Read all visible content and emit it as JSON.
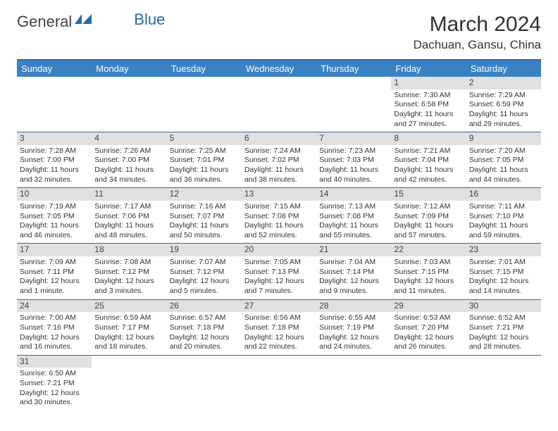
{
  "logo": {
    "part1": "General",
    "part2": "Blue"
  },
  "title": "March 2024",
  "location": "Dachuan, Gansu, China",
  "colors": {
    "header_bg": "#3b82c4",
    "header_text": "#ffffff",
    "border": "#2b6aa8",
    "daynum_bg": "#e0e0e0",
    "text": "#333333"
  },
  "daynames": [
    "Sunday",
    "Monday",
    "Tuesday",
    "Wednesday",
    "Thursday",
    "Friday",
    "Saturday"
  ],
  "weeks": [
    [
      {
        "n": "",
        "l1": "",
        "l2": "",
        "l3": "",
        "l4": ""
      },
      {
        "n": "",
        "l1": "",
        "l2": "",
        "l3": "",
        "l4": ""
      },
      {
        "n": "",
        "l1": "",
        "l2": "",
        "l3": "",
        "l4": ""
      },
      {
        "n": "",
        "l1": "",
        "l2": "",
        "l3": "",
        "l4": ""
      },
      {
        "n": "",
        "l1": "",
        "l2": "",
        "l3": "",
        "l4": ""
      },
      {
        "n": "1",
        "l1": "Sunrise: 7:30 AM",
        "l2": "Sunset: 6:58 PM",
        "l3": "Daylight: 11 hours",
        "l4": "and 27 minutes."
      },
      {
        "n": "2",
        "l1": "Sunrise: 7:29 AM",
        "l2": "Sunset: 6:59 PM",
        "l3": "Daylight: 11 hours",
        "l4": "and 29 minutes."
      }
    ],
    [
      {
        "n": "3",
        "l1": "Sunrise: 7:28 AM",
        "l2": "Sunset: 7:00 PM",
        "l3": "Daylight: 11 hours",
        "l4": "and 32 minutes."
      },
      {
        "n": "4",
        "l1": "Sunrise: 7:26 AM",
        "l2": "Sunset: 7:00 PM",
        "l3": "Daylight: 11 hours",
        "l4": "and 34 minutes."
      },
      {
        "n": "5",
        "l1": "Sunrise: 7:25 AM",
        "l2": "Sunset: 7:01 PM",
        "l3": "Daylight: 11 hours",
        "l4": "and 36 minutes."
      },
      {
        "n": "6",
        "l1": "Sunrise: 7:24 AM",
        "l2": "Sunset: 7:02 PM",
        "l3": "Daylight: 11 hours",
        "l4": "and 38 minutes."
      },
      {
        "n": "7",
        "l1": "Sunrise: 7:23 AM",
        "l2": "Sunset: 7:03 PM",
        "l3": "Daylight: 11 hours",
        "l4": "and 40 minutes."
      },
      {
        "n": "8",
        "l1": "Sunrise: 7:21 AM",
        "l2": "Sunset: 7:04 PM",
        "l3": "Daylight: 11 hours",
        "l4": "and 42 minutes."
      },
      {
        "n": "9",
        "l1": "Sunrise: 7:20 AM",
        "l2": "Sunset: 7:05 PM",
        "l3": "Daylight: 11 hours",
        "l4": "and 44 minutes."
      }
    ],
    [
      {
        "n": "10",
        "l1": "Sunrise: 7:19 AM",
        "l2": "Sunset: 7:05 PM",
        "l3": "Daylight: 11 hours",
        "l4": "and 46 minutes."
      },
      {
        "n": "11",
        "l1": "Sunrise: 7:17 AM",
        "l2": "Sunset: 7:06 PM",
        "l3": "Daylight: 11 hours",
        "l4": "and 48 minutes."
      },
      {
        "n": "12",
        "l1": "Sunrise: 7:16 AM",
        "l2": "Sunset: 7:07 PM",
        "l3": "Daylight: 11 hours",
        "l4": "and 50 minutes."
      },
      {
        "n": "13",
        "l1": "Sunrise: 7:15 AM",
        "l2": "Sunset: 7:08 PM",
        "l3": "Daylight: 11 hours",
        "l4": "and 52 minutes."
      },
      {
        "n": "14",
        "l1": "Sunrise: 7:13 AM",
        "l2": "Sunset: 7:08 PM",
        "l3": "Daylight: 11 hours",
        "l4": "and 55 minutes."
      },
      {
        "n": "15",
        "l1": "Sunrise: 7:12 AM",
        "l2": "Sunset: 7:09 PM",
        "l3": "Daylight: 11 hours",
        "l4": "and 57 minutes."
      },
      {
        "n": "16",
        "l1": "Sunrise: 7:11 AM",
        "l2": "Sunset: 7:10 PM",
        "l3": "Daylight: 11 hours",
        "l4": "and 59 minutes."
      }
    ],
    [
      {
        "n": "17",
        "l1": "Sunrise: 7:09 AM",
        "l2": "Sunset: 7:11 PM",
        "l3": "Daylight: 12 hours",
        "l4": "and 1 minute."
      },
      {
        "n": "18",
        "l1": "Sunrise: 7:08 AM",
        "l2": "Sunset: 7:12 PM",
        "l3": "Daylight: 12 hours",
        "l4": "and 3 minutes."
      },
      {
        "n": "19",
        "l1": "Sunrise: 7:07 AM",
        "l2": "Sunset: 7:12 PM",
        "l3": "Daylight: 12 hours",
        "l4": "and 5 minutes."
      },
      {
        "n": "20",
        "l1": "Sunrise: 7:05 AM",
        "l2": "Sunset: 7:13 PM",
        "l3": "Daylight: 12 hours",
        "l4": "and 7 minutes."
      },
      {
        "n": "21",
        "l1": "Sunrise: 7:04 AM",
        "l2": "Sunset: 7:14 PM",
        "l3": "Daylight: 12 hours",
        "l4": "and 9 minutes."
      },
      {
        "n": "22",
        "l1": "Sunrise: 7:03 AM",
        "l2": "Sunset: 7:15 PM",
        "l3": "Daylight: 12 hours",
        "l4": "and 11 minutes."
      },
      {
        "n": "23",
        "l1": "Sunrise: 7:01 AM",
        "l2": "Sunset: 7:15 PM",
        "l3": "Daylight: 12 hours",
        "l4": "and 14 minutes."
      }
    ],
    [
      {
        "n": "24",
        "l1": "Sunrise: 7:00 AM",
        "l2": "Sunset: 7:16 PM",
        "l3": "Daylight: 12 hours",
        "l4": "and 16 minutes."
      },
      {
        "n": "25",
        "l1": "Sunrise: 6:59 AM",
        "l2": "Sunset: 7:17 PM",
        "l3": "Daylight: 12 hours",
        "l4": "and 18 minutes."
      },
      {
        "n": "26",
        "l1": "Sunrise: 6:57 AM",
        "l2": "Sunset: 7:18 PM",
        "l3": "Daylight: 12 hours",
        "l4": "and 20 minutes."
      },
      {
        "n": "27",
        "l1": "Sunrise: 6:56 AM",
        "l2": "Sunset: 7:18 PM",
        "l3": "Daylight: 12 hours",
        "l4": "and 22 minutes."
      },
      {
        "n": "28",
        "l1": "Sunrise: 6:55 AM",
        "l2": "Sunset: 7:19 PM",
        "l3": "Daylight: 12 hours",
        "l4": "and 24 minutes."
      },
      {
        "n": "29",
        "l1": "Sunrise: 6:53 AM",
        "l2": "Sunset: 7:20 PM",
        "l3": "Daylight: 12 hours",
        "l4": "and 26 minutes."
      },
      {
        "n": "30",
        "l1": "Sunrise: 6:52 AM",
        "l2": "Sunset: 7:21 PM",
        "l3": "Daylight: 12 hours",
        "l4": "and 28 minutes."
      }
    ],
    [
      {
        "n": "31",
        "l1": "Sunrise: 6:50 AM",
        "l2": "Sunset: 7:21 PM",
        "l3": "Daylight: 12 hours",
        "l4": "and 30 minutes."
      },
      {
        "n": "",
        "l1": "",
        "l2": "",
        "l3": "",
        "l4": ""
      },
      {
        "n": "",
        "l1": "",
        "l2": "",
        "l3": "",
        "l4": ""
      },
      {
        "n": "",
        "l1": "",
        "l2": "",
        "l3": "",
        "l4": ""
      },
      {
        "n": "",
        "l1": "",
        "l2": "",
        "l3": "",
        "l4": ""
      },
      {
        "n": "",
        "l1": "",
        "l2": "",
        "l3": "",
        "l4": ""
      },
      {
        "n": "",
        "l1": "",
        "l2": "",
        "l3": "",
        "l4": ""
      }
    ]
  ]
}
